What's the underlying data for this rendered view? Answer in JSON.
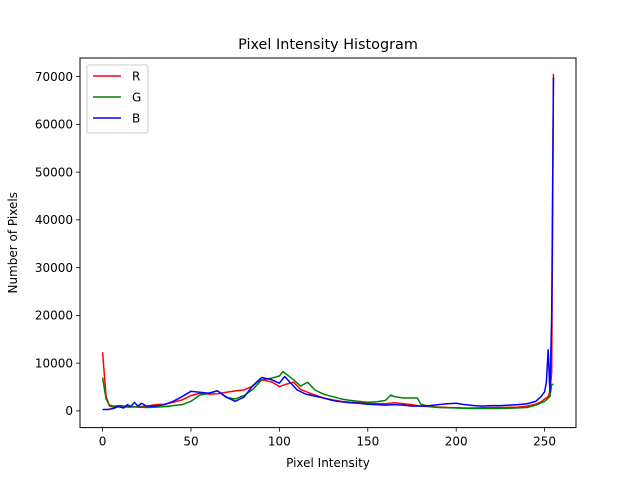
{
  "chart_data": {
    "type": "line",
    "title": "Pixel Intensity Histogram",
    "xlabel": "Pixel Intensity",
    "ylabel": "Number of Pixels",
    "xlim": [
      -12.75,
      267.75
    ],
    "ylim": [
      -3500,
      73900
    ],
    "xticks": [
      0,
      50,
      100,
      150,
      200,
      250
    ],
    "yticks": [
      0,
      10000,
      20000,
      30000,
      40000,
      50000,
      60000,
      70000
    ],
    "grid": false,
    "legend_position": "upper-left",
    "series": [
      {
        "name": "R",
        "color": "#ff0000",
        "points": [
          [
            0,
            12300
          ],
          [
            2,
            3000
          ],
          [
            4,
            1000
          ],
          [
            6,
            800
          ],
          [
            10,
            900
          ],
          [
            15,
            800
          ],
          [
            20,
            900
          ],
          [
            25,
            1000
          ],
          [
            30,
            1300
          ],
          [
            35,
            1400
          ],
          [
            40,
            1800
          ],
          [
            45,
            2300
          ],
          [
            50,
            3200
          ],
          [
            55,
            3700
          ],
          [
            60,
            3500
          ],
          [
            65,
            3600
          ],
          [
            70,
            3900
          ],
          [
            75,
            4200
          ],
          [
            80,
            4400
          ],
          [
            85,
            5200
          ],
          [
            88,
            6200
          ],
          [
            90,
            6500
          ],
          [
            93,
            6300
          ],
          [
            96,
            6000
          ],
          [
            100,
            5100
          ],
          [
            104,
            5600
          ],
          [
            108,
            6000
          ],
          [
            112,
            4500
          ],
          [
            118,
            3600
          ],
          [
            125,
            2700
          ],
          [
            130,
            2300
          ],
          [
            135,
            2000
          ],
          [
            140,
            1800
          ],
          [
            145,
            1700
          ],
          [
            150,
            1600
          ],
          [
            155,
            1500
          ],
          [
            160,
            1500
          ],
          [
            165,
            1700
          ],
          [
            170,
            1500
          ],
          [
            175,
            1300
          ],
          [
            180,
            1000
          ],
          [
            185,
            900
          ],
          [
            190,
            800
          ],
          [
            195,
            700
          ],
          [
            200,
            650
          ],
          [
            205,
            600
          ],
          [
            210,
            600
          ],
          [
            215,
            650
          ],
          [
            220,
            700
          ],
          [
            225,
            700
          ],
          [
            230,
            750
          ],
          [
            235,
            800
          ],
          [
            240,
            1000
          ],
          [
            245,
            1400
          ],
          [
            248,
            1900
          ],
          [
            250,
            2500
          ],
          [
            252,
            3000
          ],
          [
            253,
            4000
          ],
          [
            254,
            8000
          ],
          [
            255,
            70600
          ]
        ]
      },
      {
        "name": "G",
        "color": "#008000",
        "points": [
          [
            0,
            7000
          ],
          [
            2,
            2500
          ],
          [
            4,
            1200
          ],
          [
            6,
            1000
          ],
          [
            10,
            1100
          ],
          [
            15,
            900
          ],
          [
            20,
            800
          ],
          [
            25,
            700
          ],
          [
            30,
            800
          ],
          [
            35,
            900
          ],
          [
            40,
            1100
          ],
          [
            45,
            1300
          ],
          [
            50,
            2000
          ],
          [
            55,
            3300
          ],
          [
            60,
            3700
          ],
          [
            65,
            4200
          ],
          [
            70,
            2800
          ],
          [
            75,
            2500
          ],
          [
            80,
            3200
          ],
          [
            85,
            4500
          ],
          [
            90,
            6500
          ],
          [
            95,
            6800
          ],
          [
            100,
            7300
          ],
          [
            102,
            8200
          ],
          [
            105,
            7400
          ],
          [
            108,
            6500
          ],
          [
            112,
            5200
          ],
          [
            116,
            6000
          ],
          [
            120,
            4400
          ],
          [
            125,
            3500
          ],
          [
            130,
            3000
          ],
          [
            135,
            2500
          ],
          [
            140,
            2200
          ],
          [
            145,
            2000
          ],
          [
            150,
            1800
          ],
          [
            155,
            1900
          ],
          [
            160,
            2200
          ],
          [
            163,
            3300
          ],
          [
            165,
            3000
          ],
          [
            170,
            2700
          ],
          [
            175,
            2700
          ],
          [
            178,
            2700
          ],
          [
            180,
            1400
          ],
          [
            185,
            900
          ],
          [
            190,
            700
          ],
          [
            200,
            600
          ],
          [
            210,
            500
          ],
          [
            220,
            500
          ],
          [
            230,
            550
          ],
          [
            240,
            700
          ],
          [
            245,
            1200
          ],
          [
            250,
            2000
          ],
          [
            253,
            3000
          ],
          [
            254,
            5500
          ],
          [
            255,
            5600
          ]
        ]
      },
      {
        "name": "B",
        "color": "#0000ff",
        "points": [
          [
            0,
            300
          ],
          [
            3,
            300
          ],
          [
            6,
            500
          ],
          [
            9,
            900
          ],
          [
            12,
            600
          ],
          [
            14,
            1300
          ],
          [
            16,
            900
          ],
          [
            18,
            1800
          ],
          [
            20,
            1000
          ],
          [
            22,
            1600
          ],
          [
            25,
            1000
          ],
          [
            30,
            1000
          ],
          [
            35,
            1300
          ],
          [
            40,
            2000
          ],
          [
            45,
            3000
          ],
          [
            50,
            4100
          ],
          [
            55,
            3900
          ],
          [
            60,
            3700
          ],
          [
            65,
            4200
          ],
          [
            70,
            2900
          ],
          [
            75,
            2000
          ],
          [
            80,
            2900
          ],
          [
            85,
            5300
          ],
          [
            90,
            7000
          ],
          [
            95,
            6600
          ],
          [
            100,
            5800
          ],
          [
            103,
            7200
          ],
          [
            106,
            6000
          ],
          [
            110,
            4400
          ],
          [
            115,
            3500
          ],
          [
            120,
            3100
          ],
          [
            125,
            2700
          ],
          [
            130,
            2200
          ],
          [
            135,
            1900
          ],
          [
            140,
            1700
          ],
          [
            145,
            1600
          ],
          [
            150,
            1400
          ],
          [
            155,
            1300
          ],
          [
            160,
            1200
          ],
          [
            165,
            1300
          ],
          [
            170,
            1200
          ],
          [
            175,
            1000
          ],
          [
            180,
            1000
          ],
          [
            185,
            1100
          ],
          [
            190,
            1300
          ],
          [
            195,
            1500
          ],
          [
            200,
            1600
          ],
          [
            205,
            1300
          ],
          [
            210,
            1100
          ],
          [
            215,
            1000
          ],
          [
            220,
            1100
          ],
          [
            225,
            1100
          ],
          [
            230,
            1200
          ],
          [
            235,
            1300
          ],
          [
            240,
            1500
          ],
          [
            245,
            2000
          ],
          [
            248,
            3000
          ],
          [
            250,
            4000
          ],
          [
            251,
            6000
          ],
          [
            252,
            12800
          ],
          [
            253,
            4000
          ],
          [
            254,
            20000
          ],
          [
            255,
            69800
          ]
        ]
      }
    ]
  }
}
